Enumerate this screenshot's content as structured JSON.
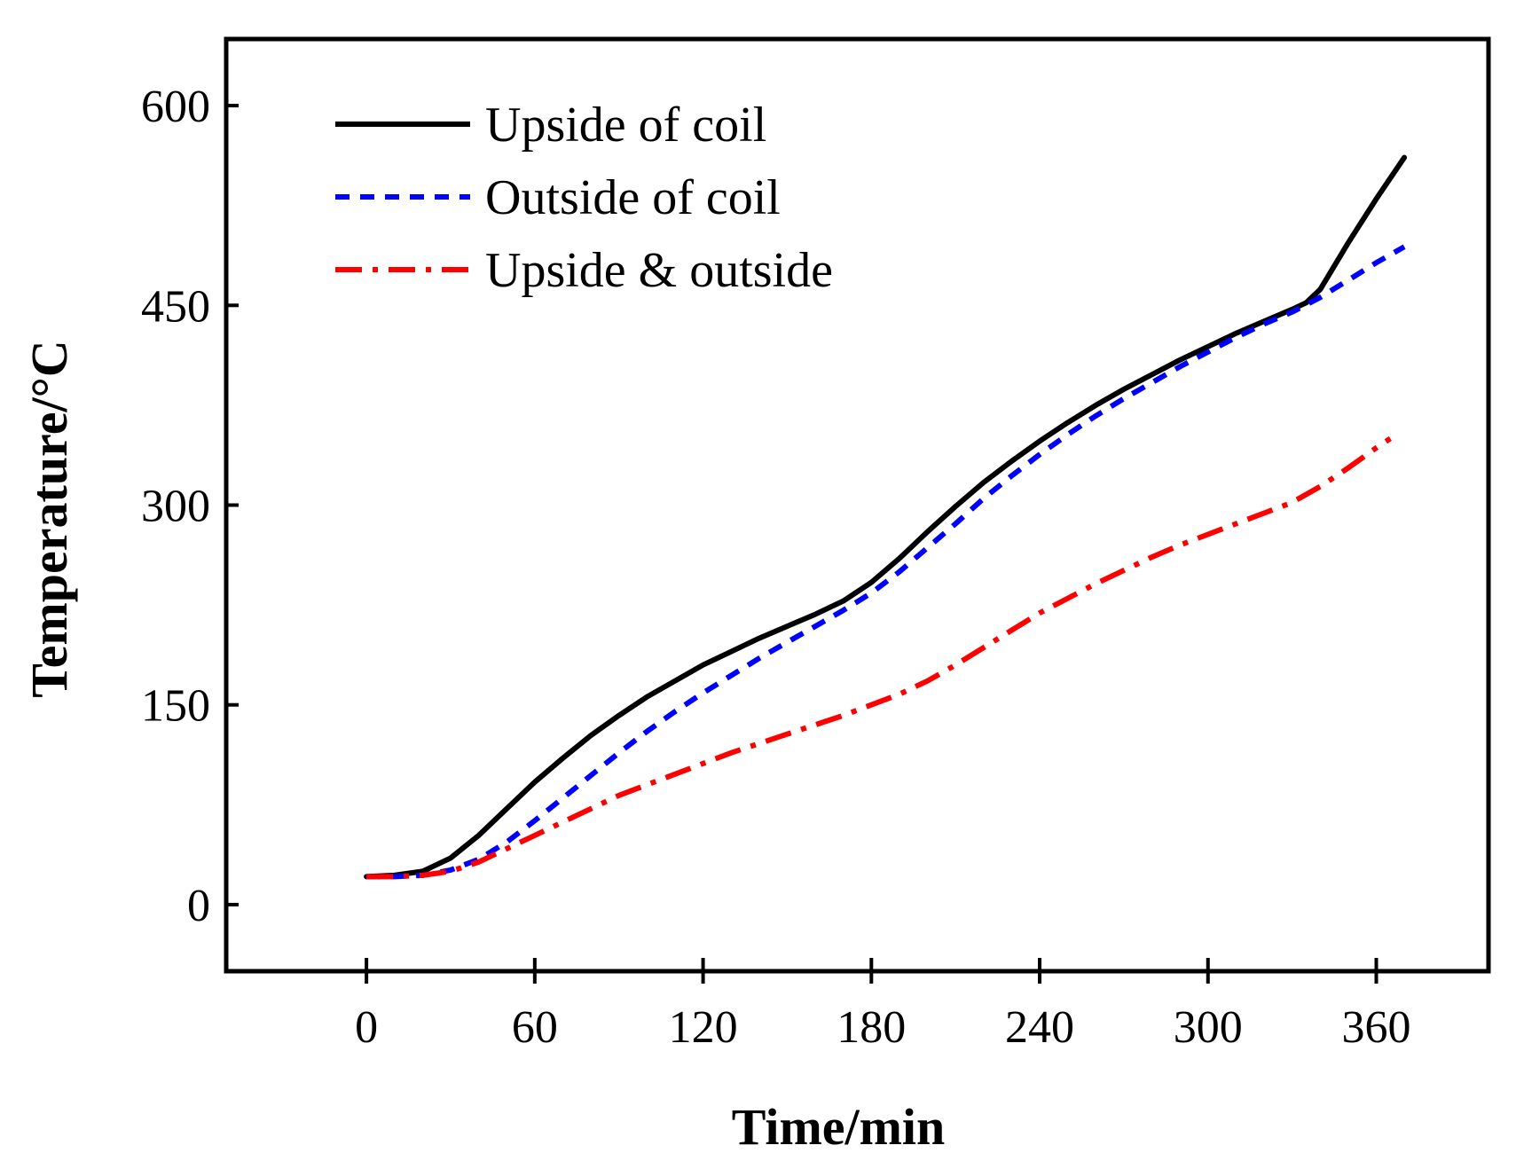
{
  "chart_data": {
    "type": "line",
    "title": "",
    "xlabel": "Time/min",
    "ylabel": "Temperature/°C",
    "xlim": [
      -50,
      400
    ],
    "ylim": [
      -50,
      650
    ],
    "xticks": [
      0,
      60,
      120,
      180,
      240,
      300,
      360
    ],
    "yticks": [
      0,
      150,
      300,
      450,
      600
    ],
    "grid": false,
    "legend_position": "top-left",
    "series": [
      {
        "name": "Upside of coil",
        "color": "#000000",
        "style": "solid",
        "x": [
          0,
          10,
          20,
          30,
          40,
          50,
          60,
          70,
          80,
          90,
          100,
          110,
          120,
          130,
          140,
          150,
          160,
          170,
          180,
          190,
          200,
          210,
          220,
          230,
          240,
          250,
          260,
          270,
          280,
          290,
          300,
          310,
          320,
          330,
          335,
          340,
          350,
          360,
          370
        ],
        "y": [
          21,
          22,
          25,
          35,
          52,
          72,
          92,
          110,
          127,
          142,
          156,
          168,
          180,
          190,
          200,
          209,
          218,
          228,
          242,
          260,
          280,
          299,
          317,
          333,
          348,
          362,
          375,
          387,
          398,
          409,
          419,
          429,
          438,
          447,
          452,
          462,
          497,
          530,
          561
        ]
      },
      {
        "name": "Outside of coil",
        "color": "#0000ff",
        "style": "dashed",
        "x": [
          0,
          10,
          20,
          30,
          40,
          50,
          60,
          70,
          80,
          90,
          100,
          110,
          120,
          130,
          140,
          150,
          160,
          170,
          180,
          190,
          200,
          210,
          220,
          230,
          240,
          250,
          260,
          270,
          280,
          290,
          300,
          310,
          320,
          330,
          340,
          350,
          360,
          370
        ],
        "y": [
          21,
          21,
          22,
          26,
          34,
          47,
          63,
          80,
          97,
          114,
          130,
          145,
          159,
          172,
          185,
          197,
          209,
          221,
          234,
          250,
          268,
          286,
          305,
          322,
          338,
          353,
          367,
          380,
          392,
          404,
          415,
          426,
          436,
          445,
          456,
          469,
          482,
          494
        ]
      },
      {
        "name": "Upside & outside",
        "color": "#ff0000",
        "style": "dashdot",
        "x": [
          0,
          10,
          20,
          30,
          40,
          50,
          60,
          70,
          80,
          90,
          100,
          110,
          120,
          130,
          140,
          150,
          160,
          170,
          180,
          190,
          200,
          210,
          220,
          230,
          240,
          250,
          260,
          270,
          280,
          290,
          300,
          310,
          320,
          330,
          340,
          350,
          360,
          365
        ],
        "y": [
          21,
          21,
          22,
          25,
          32,
          42,
          52,
          62,
          72,
          82,
          90,
          98,
          106,
          114,
          121,
          128,
          135,
          142,
          150,
          158,
          168,
          180,
          193,
          206,
          219,
          230,
          241,
          251,
          261,
          270,
          278,
          286,
          294,
          302,
          314,
          328,
          343,
          350
        ]
      }
    ]
  }
}
